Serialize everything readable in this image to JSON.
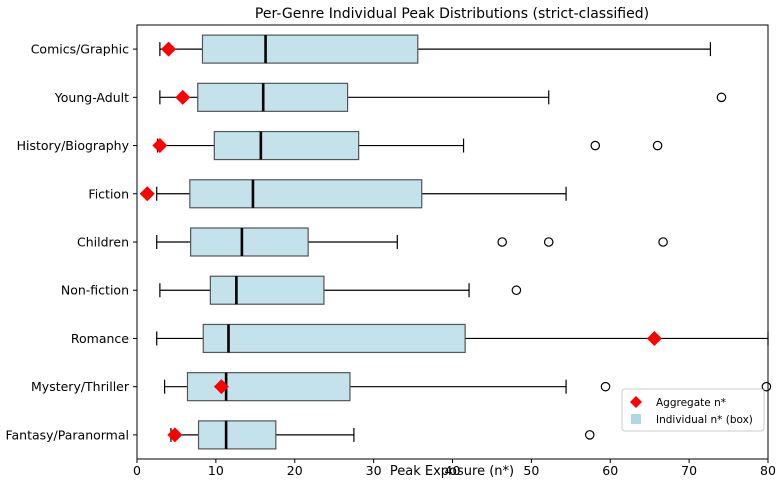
{
  "chart_data": {
    "type": "box",
    "title": "Per-Genre Individual Peak Distributions (strict-classified)",
    "xlabel": "Peak Exposure (n*)",
    "ylabel": "",
    "xlim": [
      0,
      80
    ],
    "xticks": [
      0,
      10,
      20,
      30,
      40,
      50,
      60,
      70,
      80
    ],
    "grid": false,
    "legend": {
      "position": "lower-right",
      "entries": [
        {
          "label": "Aggregate n*",
          "marker": "diamond",
          "color": "#ff0000"
        },
        {
          "label": "Individual n* (box)",
          "marker": "square",
          "color": "#add8e6"
        }
      ]
    },
    "box_color": "#c4e2ec",
    "aggregate_color": "#ff0000",
    "categories": [
      {
        "name": "Comics/Graphic",
        "whisker_low": 2.9,
        "q1": 8.3,
        "median": 16.3,
        "q3": 35.6,
        "whisker_high": 72.7,
        "outliers": [],
        "aggregate": 4.0
      },
      {
        "name": "Young-Adult",
        "whisker_low": 2.9,
        "q1": 7.7,
        "median": 16.0,
        "q3": 26.7,
        "whisker_high": 52.2,
        "outliers": [
          74.1
        ],
        "aggregate": 5.8
      },
      {
        "name": "History/Biography",
        "whisker_low": 2.6,
        "q1": 9.8,
        "median": 15.7,
        "q3": 28.1,
        "whisker_high": 41.4,
        "outliers": [
          58.1,
          66.0
        ],
        "aggregate": 2.9
      },
      {
        "name": "Fiction",
        "whisker_low": 2.5,
        "q1": 6.7,
        "median": 14.7,
        "q3": 36.1,
        "whisker_high": 54.4,
        "outliers": [],
        "aggregate": 1.3
      },
      {
        "name": "Children",
        "whisker_low": 2.5,
        "q1": 6.8,
        "median": 13.3,
        "q3": 21.7,
        "whisker_high": 33.0,
        "outliers": [
          46.3,
          52.2,
          66.7
        ],
        "aggregate": null
      },
      {
        "name": "Non-fiction",
        "whisker_low": 2.9,
        "q1": 9.3,
        "median": 12.6,
        "q3": 23.7,
        "whisker_high": 42.1,
        "outliers": [
          48.1
        ],
        "aggregate": null
      },
      {
        "name": "Romance",
        "whisker_low": 2.5,
        "q1": 8.4,
        "median": 11.6,
        "q3": 41.6,
        "whisker_high": 80.0,
        "outliers": [],
        "aggregate": 65.6
      },
      {
        "name": "Mystery/Thriller",
        "whisker_low": 3.5,
        "q1": 6.4,
        "median": 11.3,
        "q3": 27.0,
        "whisker_high": 54.4,
        "outliers": [
          59.4,
          79.8
        ],
        "aggregate": 10.7
      },
      {
        "name": "Fantasy/Paranormal",
        "whisker_low": 4.3,
        "q1": 7.8,
        "median": 11.3,
        "q3": 17.6,
        "whisker_high": 27.5,
        "outliers": [
          57.4
        ],
        "aggregate": 4.8
      }
    ]
  }
}
